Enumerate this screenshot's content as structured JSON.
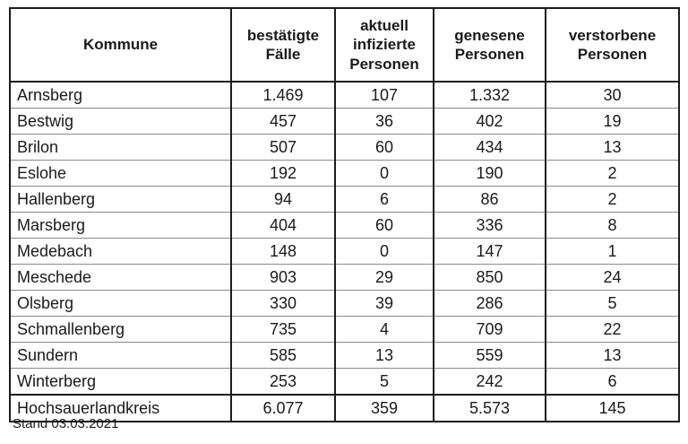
{
  "table": {
    "columns": [
      "Kommune",
      "bestätigte Fälle",
      "aktuell infizierte Personen",
      "genesene Personen",
      "verstorbene Personen"
    ],
    "rows": [
      {
        "kommune": "Arnsberg",
        "values": [
          "1.469",
          "107",
          "1.332",
          "30"
        ]
      },
      {
        "kommune": "Bestwig",
        "values": [
          "457",
          "36",
          "402",
          "19"
        ]
      },
      {
        "kommune": "Brilon",
        "values": [
          "507",
          "60",
          "434",
          "13"
        ]
      },
      {
        "kommune": "Eslohe",
        "values": [
          "192",
          "0",
          "190",
          "2"
        ]
      },
      {
        "kommune": "Hallenberg",
        "values": [
          "94",
          "6",
          "86",
          "2"
        ]
      },
      {
        "kommune": "Marsberg",
        "values": [
          "404",
          "60",
          "336",
          "8"
        ]
      },
      {
        "kommune": "Medebach",
        "values": [
          "148",
          "0",
          "147",
          "1"
        ]
      },
      {
        "kommune": "Meschede",
        "values": [
          "903",
          "29",
          "850",
          "24"
        ]
      },
      {
        "kommune": "Olsberg",
        "values": [
          "330",
          "39",
          "286",
          "5"
        ]
      },
      {
        "kommune": "Schmallenberg",
        "values": [
          "735",
          "4",
          "709",
          "22"
        ]
      },
      {
        "kommune": "Sundern",
        "values": [
          "585",
          "13",
          "559",
          "13"
        ]
      },
      {
        "kommune": "Winterberg",
        "values": [
          "253",
          "5",
          "242",
          "6"
        ]
      }
    ],
    "total_row": {
      "kommune": "Hochsauerlandkreis",
      "values": [
        "6.077",
        "359",
        "5.573",
        "145"
      ]
    }
  },
  "footer": {
    "stand_label": "Stand 03.03.2021"
  },
  "colors": {
    "background": "#ffffff",
    "text": "#1a1a1a",
    "outer_border": "#1c1c1c",
    "row_separator": "#8a8a8a"
  }
}
